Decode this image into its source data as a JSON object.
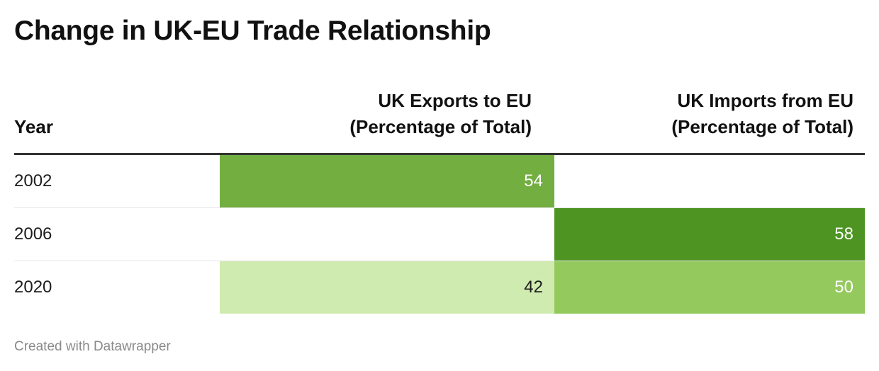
{
  "title": "Change in UK-EU Trade Relationship",
  "footer": "Created with Datawrapper",
  "colors": {
    "42": "#d0ebb0",
    "50": "#93c95d",
    "54": "#72ae40",
    "58": "#4d9422",
    "light_text": "#ffffff",
    "dark_text": "#1d1d1d"
  },
  "chart_data": {
    "type": "table",
    "title": "Change in UK-EU Trade Relationship",
    "columns": [
      {
        "line1": "Year",
        "line2": ""
      },
      {
        "line1": "UK Exports to EU",
        "line2": "(Percentage of Total)"
      },
      {
        "line1": "UK Imports from EU",
        "line2": "(Percentage of Total)"
      }
    ],
    "rows": [
      {
        "year": "2002",
        "exports": "54",
        "imports": ""
      },
      {
        "year": "2006",
        "exports": "",
        "imports": "58"
      },
      {
        "year": "2020",
        "exports": "42",
        "imports": "50"
      }
    ]
  }
}
